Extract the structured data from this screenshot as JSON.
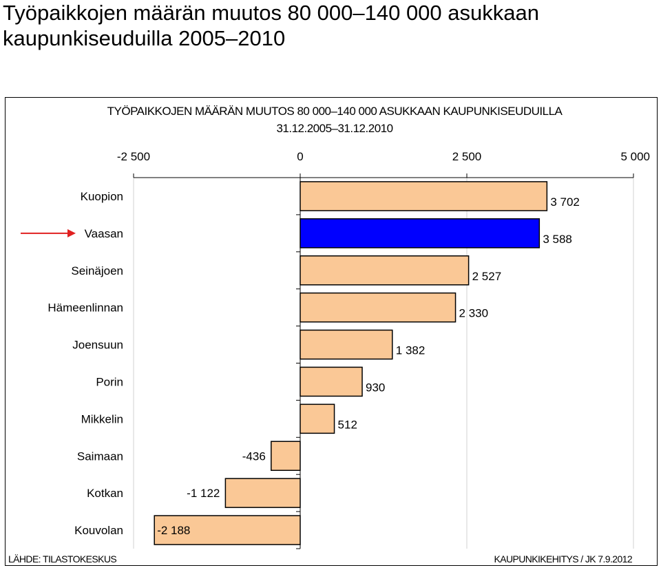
{
  "page": {
    "title_line1": "Työpaikkojen määrän muutos 80 000–140 000 asukkaan",
    "title_line2": "kaupunkiseuduilla 2005–2010"
  },
  "chart_data": {
    "type": "bar",
    "orientation": "horizontal",
    "title_line1": "TYÖPAIKKOJEN MÄÄRÄN MUUTOS 80 000–140 000 ASUKKAAN KAUPUNKISEUDUILLA",
    "title_line2": "31.12.2005–31.12.2010",
    "categories": [
      "Kuopion",
      "Vaasan",
      "Seinäjoen",
      "Hämeenlinnan",
      "Joensuun",
      "Porin",
      "Mikkelin",
      "Saimaan",
      "Kotkan",
      "Kouvolan"
    ],
    "values": [
      3702,
      3588,
      2527,
      2330,
      1382,
      930,
      512,
      -436,
      -1122,
      -2188
    ],
    "value_labels": [
      "3 702",
      "3 588",
      "2 527",
      "2 330",
      "1 382",
      "930",
      "512",
      "-436",
      "-1 122",
      "-2 188"
    ],
    "xlim": [
      -2500,
      5000
    ],
    "xticks": [
      -2500,
      0,
      2500,
      5000
    ],
    "xtick_labels": [
      "-2 500",
      "0",
      "2 500",
      "5 000"
    ],
    "axis_position": "top",
    "grid": true,
    "highlight": {
      "category": "Vaasan",
      "color": "#0000ff",
      "arrow_color": "#e02020"
    },
    "bar_color": "#fac896",
    "source": "LÄHDE: TILASTOKESKUS",
    "credit": "KAUPUNKIKEHITYS / JK 7.9.2012"
  }
}
